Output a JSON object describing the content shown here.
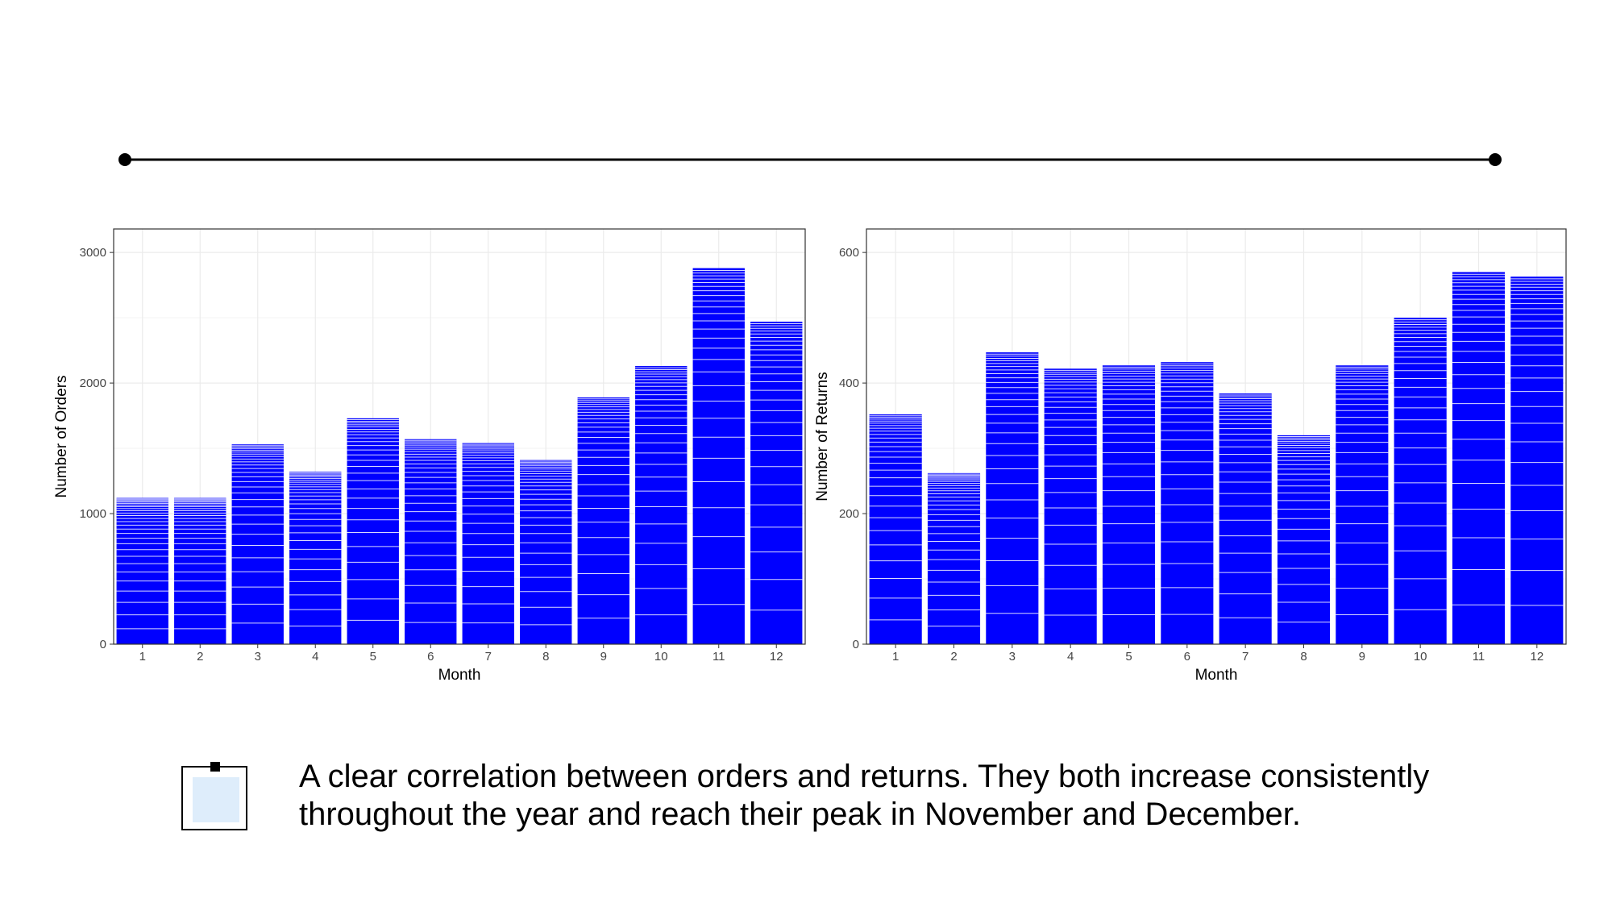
{
  "caption": {
    "text": "A clear correlation between orders and returns. They both increase consistently throughout the year and reach their peak in November and December.",
    "icon": "sticky-note-icon"
  },
  "colors": {
    "bar": "#0000ff",
    "bar_line": "#ffffff",
    "grid": "#ebebeb",
    "panel_border": "#333333",
    "timeline": "#000000",
    "note_fill": "#deedfb"
  },
  "chart_data": [
    {
      "type": "bar",
      "categories": [
        "1",
        "2",
        "3",
        "4",
        "5",
        "6",
        "7",
        "8",
        "9",
        "10",
        "11",
        "12"
      ],
      "values": [
        1120,
        1120,
        1530,
        1320,
        1730,
        1570,
        1540,
        1410,
        1890,
        2130,
        2880,
        2470
      ],
      "title": "",
      "xlabel": "Month",
      "ylabel": "Number of Orders",
      "ylim": [
        0,
        3180
      ],
      "yticks": [
        0,
        1000,
        2000,
        3000
      ],
      "grid": true,
      "legend": "none"
    },
    {
      "type": "bar",
      "categories": [
        "1",
        "2",
        "3",
        "4",
        "5",
        "6",
        "7",
        "8",
        "9",
        "10",
        "11",
        "12"
      ],
      "values": [
        352,
        262,
        447,
        422,
        427,
        432,
        384,
        320,
        427,
        500,
        570,
        563
      ],
      "title": "",
      "xlabel": "Month",
      "ylabel": "Number of Returns",
      "ylim": [
        0,
        636
      ],
      "yticks": [
        0,
        200,
        400,
        600
      ],
      "grid": true,
      "legend": "none"
    }
  ]
}
